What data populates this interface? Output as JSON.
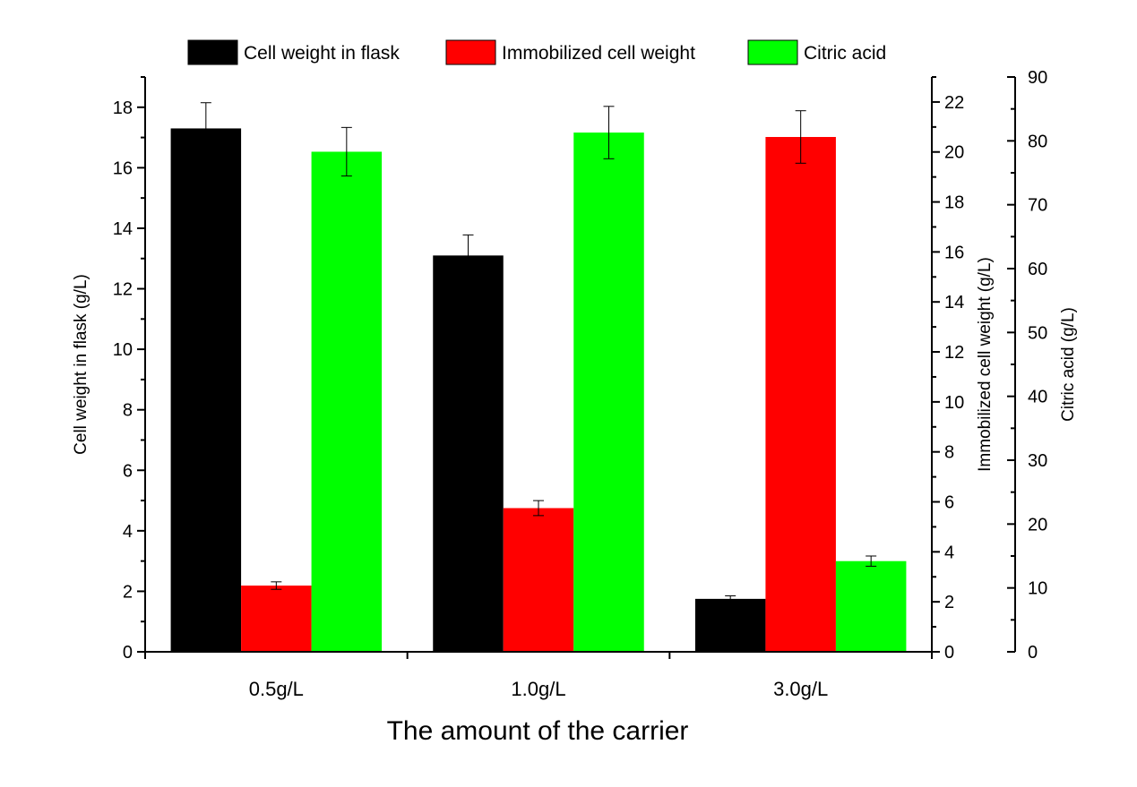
{
  "chart_data": {
    "type": "bar",
    "xlabel": "The amount of the carrier",
    "categories": [
      "0.5g/L",
      "1.0g/L",
      "3.0g/L"
    ],
    "axes": {
      "left": {
        "label": "Cell weight in flask (g/L)",
        "ylim": [
          0,
          19
        ],
        "ticks": [
          0,
          2,
          4,
          6,
          8,
          10,
          12,
          14,
          16,
          18
        ]
      },
      "right1": {
        "label": "Immobilized cell weight (g/L)",
        "ylim": [
          0,
          23
        ],
        "ticks": [
          0,
          2,
          4,
          6,
          8,
          10,
          12,
          14,
          16,
          18,
          20,
          22
        ]
      },
      "right2": {
        "label": "Citric acid (g/L)",
        "ylim": [
          0,
          90
        ],
        "ticks": [
          0,
          10,
          20,
          30,
          40,
          50,
          60,
          70,
          80,
          90
        ]
      }
    },
    "series": [
      {
        "name": "Cell weight in flask",
        "axis": "left",
        "color": "#000000",
        "values": [
          17.3,
          13.1,
          1.75
        ],
        "errors": [
          0.85,
          0.68,
          0.1
        ]
      },
      {
        "name": "Immobilized cell weight",
        "axis": "right1",
        "color": "#ff0000",
        "values": [
          2.65,
          5.75,
          20.6
        ],
        "errors": [
          0.15,
          0.3,
          1.05
        ]
      },
      {
        "name": "Citric acid",
        "axis": "right2",
        "color": "#00ff00",
        "values": [
          78.3,
          81.3,
          14.2
        ],
        "errors": [
          3.8,
          4.1,
          0.8
        ]
      }
    ],
    "legend": "top",
    "grid": false
  }
}
